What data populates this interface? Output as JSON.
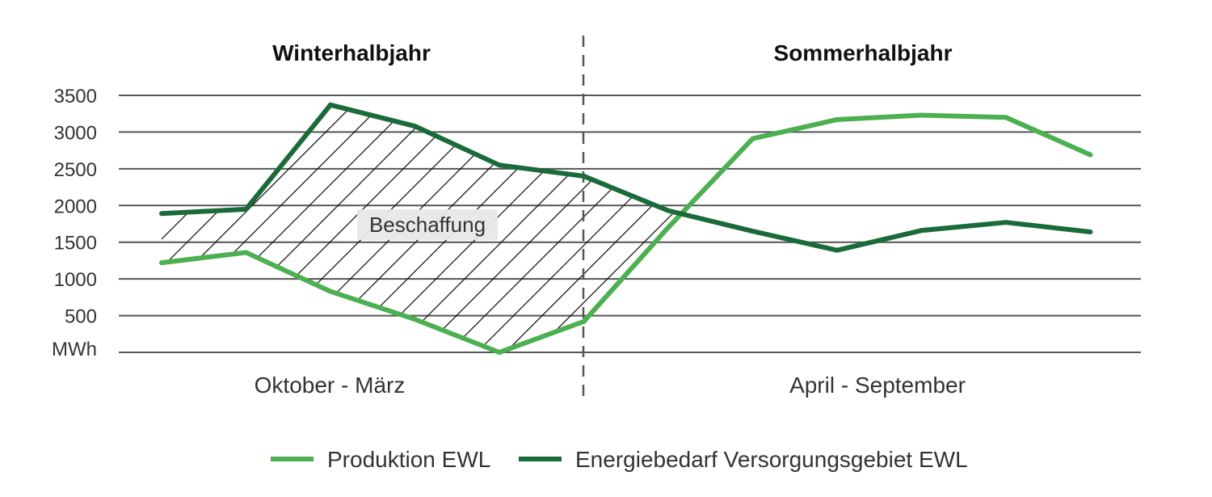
{
  "chart_data": {
    "type": "line",
    "ylabel": "MWh",
    "ylim": [
      0,
      3500
    ],
    "yticks": [
      500,
      1000,
      1500,
      2000,
      2500,
      3000,
      3500
    ],
    "grid": true,
    "legend_position": "bottom",
    "sections": [
      {
        "title": "Winterhalbjahr",
        "period": "Oktober - März"
      },
      {
        "title": "Sommerhalbjahr",
        "period": "April - September"
      }
    ],
    "x": [
      1,
      2,
      3,
      4,
      5,
      6,
      7,
      8,
      9,
      10,
      11,
      12
    ],
    "series": [
      {
        "name": "Produktion EWL",
        "color": "#4caf50",
        "values": [
          1220,
          1360,
          830,
          450,
          0,
          420,
          1700,
          2910,
          3170,
          3230,
          3200,
          2690
        ]
      },
      {
        "name": "Energiebedarf Versorgungsgebiet EWL",
        "color": "#1b6b3a",
        "values": [
          1890,
          1950,
          3370,
          3080,
          2550,
          2400,
          1930,
          1650,
          1390,
          1660,
          1770,
          1640
        ]
      }
    ],
    "annotation": {
      "text": "Beschaffung"
    }
  }
}
